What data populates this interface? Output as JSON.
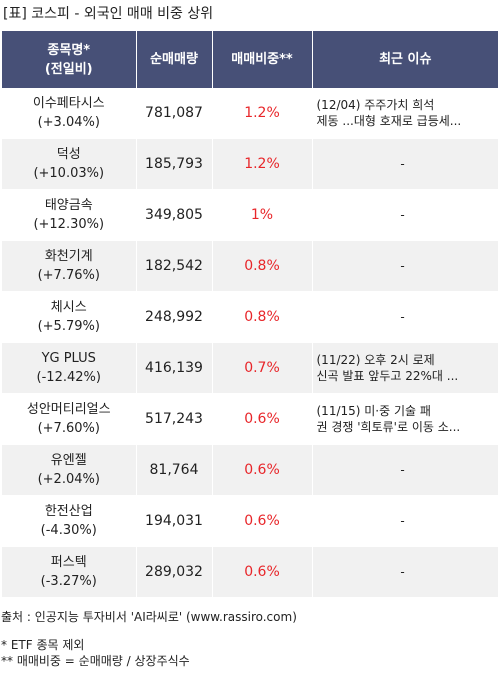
{
  "title": "[표] 코스피 - 외국인 매매 비중 상위",
  "headers": {
    "name_line1": "종목명*",
    "name_line2": "(전일비)",
    "volume": "순매매량",
    "share": "매매비중**",
    "issue": "최근 이슈"
  },
  "rows": [
    {
      "name": "이수페타시스",
      "change": "(+3.04%)",
      "volume": "781,087",
      "share": "1.2%",
      "issue_line1": "(12/04) 주주가치 희석",
      "issue_line2": "제동 ...대형 호재로 급등세..."
    },
    {
      "name": "덕성",
      "change": "(+10.03%)",
      "volume": "185,793",
      "share": "1.2%",
      "issue_line1": "-",
      "issue_line2": ""
    },
    {
      "name": "태양금속",
      "change": "(+12.30%)",
      "volume": "349,805",
      "share": "1%",
      "issue_line1": "-",
      "issue_line2": ""
    },
    {
      "name": "화천기계",
      "change": "(+7.76%)",
      "volume": "182,542",
      "share": "0.8%",
      "issue_line1": "-",
      "issue_line2": ""
    },
    {
      "name": "체시스",
      "change": "(+5.79%)",
      "volume": "248,992",
      "share": "0.8%",
      "issue_line1": "-",
      "issue_line2": ""
    },
    {
      "name": "YG PLUS",
      "change": "(-12.42%)",
      "volume": "416,139",
      "share": "0.7%",
      "issue_line1": "(11/22) 오후 2시 로제",
      "issue_line2": "신곡 발표 앞두고 22%대 ..."
    },
    {
      "name": "성안머티리얼스",
      "change": "(+7.60%)",
      "volume": "517,243",
      "share": "0.6%",
      "issue_line1": "(11/15) 미·중 기술 패",
      "issue_line2": "권 경쟁 '희토류'로 이동 소..."
    },
    {
      "name": "유엔젤",
      "change": "(+2.04%)",
      "volume": "81,764",
      "share": "0.6%",
      "issue_line1": "-",
      "issue_line2": ""
    },
    {
      "name": "한전산업",
      "change": "(-4.30%)",
      "volume": "194,031",
      "share": "0.6%",
      "issue_line1": "-",
      "issue_line2": ""
    },
    {
      "name": "퍼스텍",
      "change": "(-3.27%)",
      "volume": "289,032",
      "share": "0.6%",
      "issue_line1": "-",
      "issue_line2": ""
    }
  ],
  "footer": {
    "source": "출처 : 인공지능 투자비서 'AI라씨로' (www.rassiro.com)",
    "note1": "* ETF 종목 제외",
    "note2": "** 매매비중 = 순매매량 / 상장주식수"
  }
}
